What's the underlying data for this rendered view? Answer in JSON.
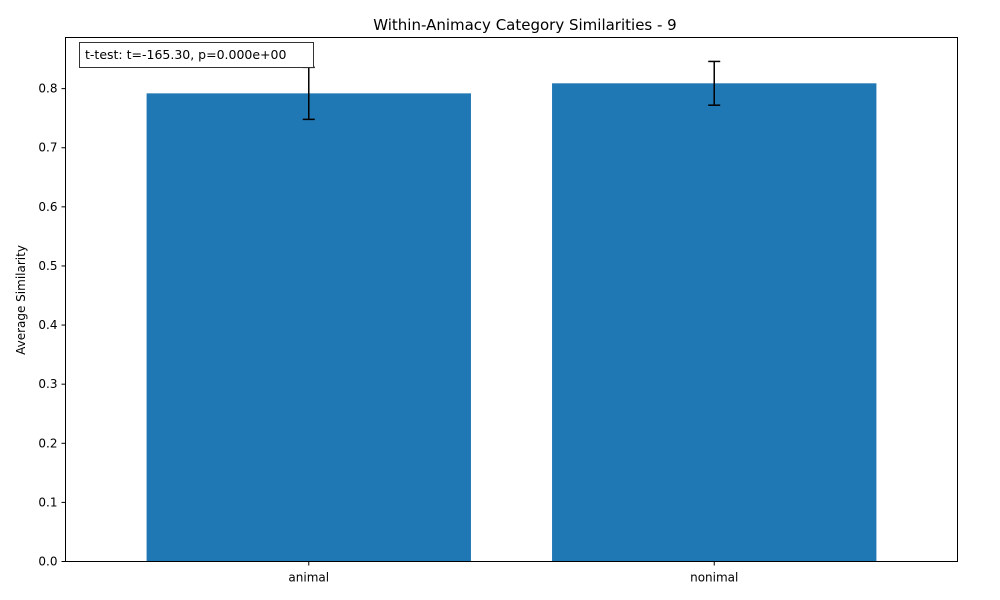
{
  "chart_data": {
    "type": "bar",
    "title": "Within-Animacy Category Similarities - 9",
    "xlabel": "",
    "ylabel": "Average Similarity",
    "categories": [
      "animal",
      "nonimal"
    ],
    "values": [
      0.792,
      0.809
    ],
    "errors": [
      0.044,
      0.037
    ],
    "ylim": [
      0,
      0.8865
    ],
    "yticks": [
      0.0,
      0.1,
      0.2,
      0.3,
      0.4,
      0.5,
      0.6,
      0.7,
      0.8
    ],
    "ytick_labels": [
      "0.0",
      "0.1",
      "0.2",
      "0.3",
      "0.4",
      "0.5",
      "0.6",
      "0.7",
      "0.8"
    ],
    "bar_color": "#1f77b4",
    "error_color": "#000000",
    "grid": false,
    "legend": "none",
    "annotation": "t-test: t=-165.30, p=0.000e+00"
  }
}
